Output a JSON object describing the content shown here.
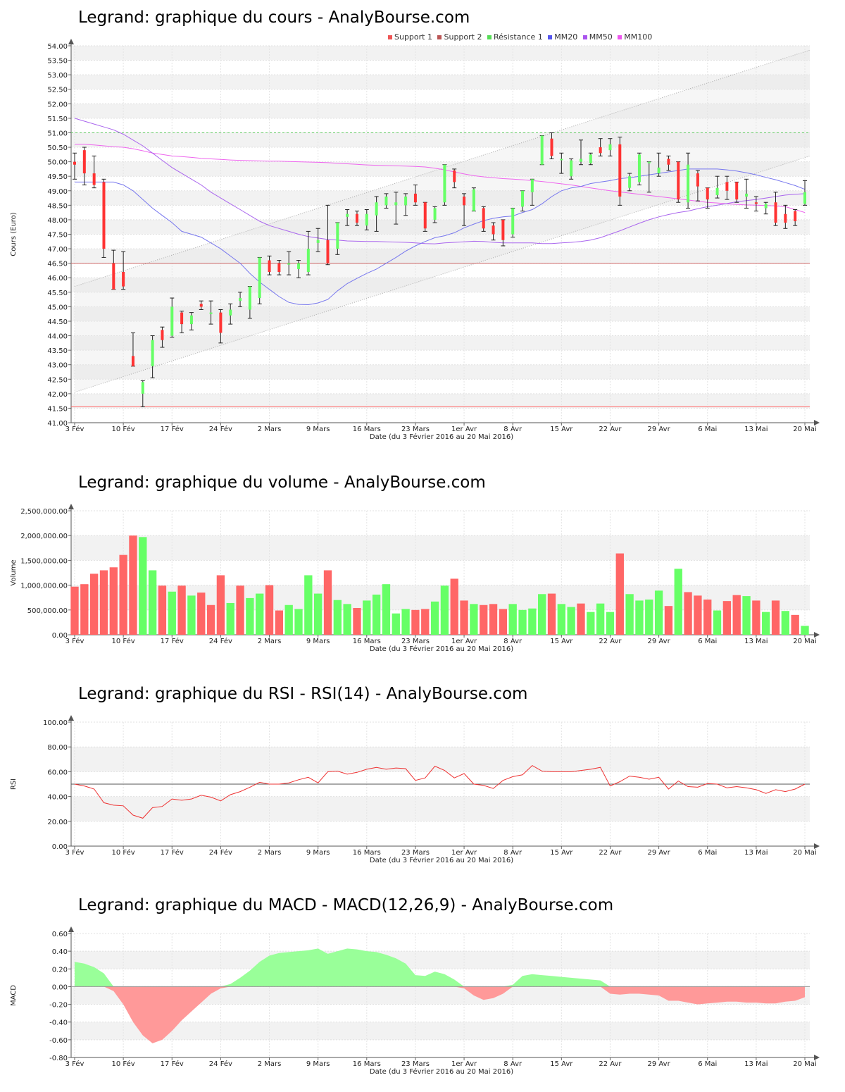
{
  "colors": {
    "up": "#66ff66",
    "down": "#ff3333",
    "volUp": "#66ff66",
    "volDown": "#ff6666",
    "support1": "#ff6666",
    "support2": "#cc6666",
    "resistance1": "#66cc66",
    "mm20": "#7777ee",
    "mm50": "#aa66ee",
    "mm100": "#ee66ee",
    "rsiLine": "#ee3333",
    "macdPos": "#99ff99",
    "macdNeg": "#ff9999"
  },
  "chart_data": [
    {
      "id": "price",
      "type": "candlestick",
      "title": "Legrand: graphique du cours - AnalyBourse.com",
      "ylabel": "Cours (Euro)",
      "xlabel": "Date (du 3 Février 2016 au 20 Mai 2016)",
      "ylim": [
        41,
        54
      ],
      "yticks": [
        "41.00",
        "41.50",
        "42.00",
        "42.50",
        "43.00",
        "43.50",
        "44.00",
        "44.50",
        "45.00",
        "45.50",
        "46.00",
        "46.50",
        "47.00",
        "47.50",
        "48.00",
        "48.50",
        "49.00",
        "49.50",
        "50.00",
        "50.50",
        "51.00",
        "51.50",
        "52.00",
        "52.50",
        "53.00",
        "53.50",
        "54.00"
      ],
      "xtick_labels": [
        "3 Fév",
        "10 Fév",
        "17 Fév",
        "24 Fév",
        "2 Mars",
        "9 Mars",
        "16 Mars",
        "23 Mars",
        "1er Avr",
        "8 Avr",
        "15 Avr",
        "22 Avr",
        "29 Avr",
        "6 Mai",
        "13 Mai",
        "20 Mai"
      ],
      "legend": [
        "Support 1",
        "Support 2",
        "Résistance 1",
        "MM20",
        "MM50",
        "MM100"
      ],
      "support1": 41.55,
      "support2": 46.5,
      "resistance1": 51.0,
      "ohlc": [
        [
          50.0,
          50.3,
          49.4,
          49.9
        ],
        [
          50.4,
          50.5,
          49.2,
          49.6
        ],
        [
          49.6,
          50.2,
          49.1,
          49.2
        ],
        [
          49.3,
          49.4,
          46.7,
          47.0
        ],
        [
          46.5,
          46.95,
          45.6,
          45.6
        ],
        [
          46.2,
          46.9,
          45.6,
          45.7
        ],
        [
          43.3,
          44.1,
          42.95,
          42.95
        ],
        [
          42.0,
          42.45,
          41.55,
          42.4
        ],
        [
          42.95,
          44.0,
          42.55,
          43.85
        ],
        [
          44.2,
          44.3,
          43.6,
          43.85
        ],
        [
          44.0,
          45.3,
          43.95,
          45.0
        ],
        [
          44.8,
          44.85,
          44.1,
          44.4
        ],
        [
          44.4,
          44.8,
          44.2,
          44.7
        ],
        [
          45.1,
          45.2,
          44.9,
          45.0
        ],
        [
          44.8,
          45.2,
          44.4,
          44.8
        ],
        [
          44.8,
          44.9,
          43.75,
          44.1
        ],
        [
          44.7,
          45.1,
          44.4,
          44.9
        ],
        [
          45.2,
          45.5,
          45.0,
          45.3
        ],
        [
          44.9,
          45.7,
          44.6,
          45.7
        ],
        [
          45.3,
          46.7,
          45.1,
          46.7
        ],
        [
          46.6,
          46.75,
          46.1,
          46.2
        ],
        [
          46.5,
          46.6,
          46.1,
          46.2
        ],
        [
          46.5,
          46.9,
          46.1,
          46.5
        ],
        [
          46.3,
          46.6,
          46.0,
          46.5
        ],
        [
          46.2,
          47.6,
          46.1,
          47.0
        ],
        [
          47.2,
          47.7,
          46.9,
          47.3
        ],
        [
          47.3,
          48.5,
          46.45,
          46.5
        ],
        [
          47.0,
          47.9,
          46.8,
          47.9
        ],
        [
          48.1,
          48.35,
          47.8,
          48.2
        ],
        [
          48.2,
          48.3,
          47.8,
          47.9
        ],
        [
          47.8,
          48.35,
          47.65,
          48.2
        ],
        [
          48.15,
          48.8,
          47.6,
          48.6
        ],
        [
          48.5,
          48.9,
          48.4,
          48.8
        ],
        [
          48.5,
          48.95,
          47.85,
          48.6
        ],
        [
          48.5,
          48.9,
          48.15,
          48.8
        ],
        [
          48.9,
          49.2,
          48.5,
          48.6
        ],
        [
          48.6,
          48.6,
          47.6,
          47.7
        ],
        [
          48.0,
          48.45,
          47.9,
          48.4
        ],
        [
          48.6,
          49.9,
          48.5,
          49.9
        ],
        [
          49.7,
          49.75,
          49.1,
          49.3
        ],
        [
          48.8,
          48.9,
          47.8,
          48.5
        ],
        [
          48.3,
          49.1,
          48.3,
          49.05
        ],
        [
          48.4,
          48.45,
          47.6,
          47.7
        ],
        [
          47.8,
          47.9,
          47.3,
          47.5
        ],
        [
          48.0,
          48.0,
          47.1,
          47.3
        ],
        [
          47.5,
          48.4,
          47.4,
          48.4
        ],
        [
          48.45,
          49.0,
          48.3,
          49.0
        ],
        [
          48.95,
          49.4,
          48.5,
          49.4
        ],
        [
          49.9,
          50.9,
          49.9,
          50.9
        ],
        [
          50.8,
          51.0,
          50.1,
          50.2
        ],
        [
          50.1,
          50.3,
          49.6,
          50.1
        ],
        [
          49.5,
          50.1,
          49.4,
          50.05
        ],
        [
          50.0,
          50.75,
          49.9,
          50.1
        ],
        [
          49.95,
          50.3,
          49.9,
          50.25
        ],
        [
          50.5,
          50.8,
          50.2,
          50.3
        ],
        [
          50.4,
          50.8,
          50.2,
          50.6
        ],
        [
          50.6,
          50.85,
          48.5,
          48.8
        ],
        [
          49.1,
          49.6,
          49.0,
          49.5
        ],
        [
          49.3,
          50.3,
          49.2,
          50.25
        ],
        [
          50.0,
          50.0,
          48.95,
          50.0
        ],
        [
          49.6,
          50.3,
          49.5,
          49.8
        ],
        [
          50.1,
          50.2,
          49.7,
          49.9
        ],
        [
          50.0,
          50.0,
          48.6,
          48.7
        ],
        [
          48.6,
          50.3,
          48.4,
          49.9
        ],
        [
          49.6,
          49.7,
          48.65,
          49.15
        ],
        [
          49.1,
          49.1,
          48.4,
          48.7
        ],
        [
          48.85,
          49.5,
          48.75,
          49.1
        ],
        [
          49.3,
          49.5,
          48.7,
          49.0
        ],
        [
          49.3,
          49.3,
          48.6,
          48.7
        ],
        [
          48.8,
          49.4,
          48.4,
          48.9
        ],
        [
          48.6,
          48.8,
          48.3,
          48.55
        ],
        [
          48.4,
          48.6,
          48.2,
          48.55
        ],
        [
          48.6,
          48.95,
          47.8,
          47.9
        ],
        [
          48.2,
          48.5,
          47.7,
          47.9
        ],
        [
          48.3,
          48.35,
          47.8,
          47.95
        ],
        [
          48.55,
          49.35,
          48.5,
          48.95
        ]
      ],
      "mm20": [
        49.3,
        49.3,
        49.3,
        49.3,
        49.3,
        49.2,
        49.0,
        48.7,
        48.4,
        48.15,
        47.9,
        47.6,
        47.5,
        47.4,
        47.2,
        47.0,
        46.75,
        46.5,
        46.15,
        45.85,
        45.6,
        45.35,
        45.15,
        45.08,
        45.07,
        45.13,
        45.25,
        45.55,
        45.8,
        45.98,
        46.15,
        46.3,
        46.5,
        46.7,
        46.92,
        47.1,
        47.25,
        47.38,
        47.45,
        47.55,
        47.72,
        47.85,
        47.97,
        48.05,
        48.1,
        48.13,
        48.25,
        48.35,
        48.55,
        48.8,
        49.0,
        49.1,
        49.15,
        49.25,
        49.3,
        49.35,
        49.42,
        49.45,
        49.5,
        49.55,
        49.6,
        49.65,
        49.7,
        49.75,
        49.75,
        49.75,
        49.75,
        49.72,
        49.68,
        49.62,
        49.55,
        49.46,
        49.38,
        49.28,
        49.18,
        49.05
      ],
      "mm50": [
        51.5,
        51.4,
        51.3,
        51.2,
        51.1,
        50.95,
        50.75,
        50.55,
        50.3,
        50.05,
        49.8,
        49.6,
        49.4,
        49.2,
        48.95,
        48.75,
        48.55,
        48.35,
        48.15,
        47.95,
        47.8,
        47.7,
        47.6,
        47.5,
        47.42,
        47.37,
        47.32,
        47.3,
        47.27,
        47.26,
        47.25,
        47.25,
        47.24,
        47.23,
        47.22,
        47.2,
        47.18,
        47.17,
        47.2,
        47.22,
        47.24,
        47.26,
        47.25,
        47.22,
        47.2,
        47.2,
        47.2,
        47.2,
        47.18,
        47.18,
        47.2,
        47.22,
        47.25,
        47.3,
        47.38,
        47.5,
        47.62,
        47.75,
        47.88,
        48.0,
        48.1,
        48.18,
        48.25,
        48.3,
        48.38,
        48.45,
        48.5,
        48.56,
        48.62,
        48.66,
        48.7,
        48.75,
        48.8,
        48.85,
        48.88,
        48.9
      ],
      "mm100": [
        50.6,
        50.6,
        50.58,
        50.55,
        50.52,
        50.5,
        50.45,
        50.38,
        50.3,
        50.25,
        50.2,
        50.18,
        50.15,
        50.12,
        50.1,
        50.08,
        50.06,
        50.05,
        50.04,
        50.03,
        50.02,
        50.02,
        50.01,
        50.0,
        49.99,
        49.98,
        49.97,
        49.95,
        49.93,
        49.91,
        49.89,
        49.88,
        49.87,
        49.86,
        49.85,
        49.84,
        49.82,
        49.78,
        49.72,
        49.65,
        49.58,
        49.52,
        49.48,
        49.45,
        49.42,
        49.4,
        49.38,
        49.35,
        49.32,
        49.28,
        49.24,
        49.2,
        49.15,
        49.1,
        49.05,
        49.0,
        48.96,
        48.92,
        48.88,
        48.84,
        48.8,
        48.76,
        48.72,
        48.68,
        48.64,
        48.6,
        48.58,
        48.55,
        48.53,
        48.51,
        48.5,
        48.49,
        48.48,
        48.45,
        48.35,
        48.25
      ]
    },
    {
      "id": "volume",
      "type": "bar",
      "title": "Legrand: graphique du volume - AnalyBourse.com",
      "ylabel": "Volume",
      "xlabel": "Date (du 3 Février 2016 au 20 Mai 2016)",
      "ylim": [
        0,
        2500000
      ],
      "yticks": [
        "0.00",
        "500,000.00",
        "1,000,000.00",
        "1,500,000.00",
        "2,000,000.00",
        "2,500,000.00"
      ],
      "xtick_labels": [
        "3 Fév",
        "10 Fév",
        "17 Fév",
        "24 Fév",
        "2 Mars",
        "9 Mars",
        "16 Mars",
        "23 Mars",
        "1er Avr",
        "8 Avr",
        "15 Avr",
        "22 Avr",
        "29 Avr",
        "6 Mai",
        "13 Mai",
        "20 Mai"
      ],
      "values": [
        970000,
        1020000,
        1230000,
        1300000,
        1360000,
        1610000,
        2000000,
        1970000,
        1300000,
        990000,
        870000,
        990000,
        790000,
        850000,
        600000,
        1200000,
        640000,
        990000,
        740000,
        830000,
        1000000,
        490000,
        600000,
        520000,
        1200000,
        830000,
        1300000,
        700000,
        620000,
        540000,
        690000,
        810000,
        1020000,
        430000,
        520000,
        500000,
        520000,
        670000,
        990000,
        1130000,
        690000,
        620000,
        600000,
        620000,
        520000,
        620000,
        500000,
        530000,
        820000,
        830000,
        620000,
        560000,
        630000,
        460000,
        630000,
        460000,
        1640000,
        820000,
        690000,
        710000,
        890000,
        580000,
        1330000,
        860000,
        790000,
        710000,
        490000,
        680000,
        800000,
        780000,
        690000,
        460000,
        690000,
        480000,
        400000,
        180000
      ],
      "up": [
        false,
        false,
        false,
        false,
        false,
        false,
        false,
        true,
        true,
        false,
        true,
        false,
        true,
        false,
        false,
        false,
        true,
        false,
        true,
        true,
        false,
        false,
        true,
        true,
        true,
        true,
        false,
        true,
        true,
        false,
        true,
        true,
        true,
        true,
        true,
        false,
        false,
        true,
        true,
        false,
        false,
        true,
        false,
        false,
        false,
        true,
        true,
        true,
        true,
        false,
        true,
        true,
        false,
        true,
        true,
        true,
        false,
        true,
        true,
        true,
        true,
        false,
        true,
        false,
        false,
        false,
        true,
        false,
        false,
        true,
        false,
        true,
        false,
        true,
        false,
        true
      ]
    },
    {
      "id": "rsi",
      "type": "line",
      "title": "Legrand: graphique du RSI - RSI(14) - AnalyBourse.com",
      "ylabel": "RSI",
      "xlabel": "Date (du 3 Février 2016 au 20 Mai 2016)",
      "ylim": [
        0,
        100
      ],
      "yticks": [
        "0.00",
        "20.00",
        "40.00",
        "60.00",
        "80.00",
        "100.00"
      ],
      "xtick_labels": [
        "3 Fév",
        "10 Fév",
        "17 Fév",
        "24 Fév",
        "2 Mars",
        "9 Mars",
        "16 Mars",
        "23 Mars",
        "1er Avr",
        "8 Avr",
        "15 Avr",
        "22 Avr",
        "29 Avr",
        "6 Mai",
        "13 Mai",
        "20 Mai"
      ],
      "reference": 50,
      "values": [
        50,
        48.5,
        46,
        35,
        33,
        32.5,
        25,
        22.5,
        31,
        32,
        38,
        37,
        38,
        41,
        39.5,
        36.5,
        41.5,
        44,
        47.5,
        51.5,
        50,
        50,
        51,
        53.5,
        55.5,
        51,
        60,
        60.5,
        58,
        59.5,
        62,
        63.5,
        62,
        63,
        62.5,
        53,
        55,
        64.5,
        61,
        55,
        58.5,
        50,
        49,
        46.5,
        53,
        56,
        57.5,
        65,
        60.5,
        60,
        60,
        60,
        61,
        62,
        63.5,
        48.5,
        52,
        56.5,
        55.5,
        54,
        55.5,
        46,
        52.5,
        48,
        47.5,
        50.5,
        50,
        47,
        48,
        47,
        45.5,
        42.5,
        45.5,
        44,
        46,
        50
      ]
    },
    {
      "id": "macd",
      "type": "area",
      "title": "Legrand: graphique du MACD - MACD(12,26,9) - AnalyBourse.com",
      "ylabel": "MACD",
      "xlabel": "Date (du 3 Février 2016 au 20 Mai 2016)",
      "ylim": [
        -0.8,
        0.6
      ],
      "yticks": [
        "-0.80",
        "-0.60",
        "-0.40",
        "-0.20",
        "0.00",
        "0.20",
        "0.40",
        "0.60"
      ],
      "xtick_labels": [
        "3 Fév",
        "10 Fév",
        "17 Fév",
        "24 Fév",
        "2 Mars",
        "9 Mars",
        "16 Mars",
        "23 Mars",
        "1er Avr",
        "8 Avr",
        "15 Avr",
        "22 Avr",
        "29 Avr",
        "6 Mai",
        "13 Mai",
        "20 Mai"
      ],
      "values": [
        0.28,
        0.26,
        0.22,
        0.15,
        -0.05,
        -0.2,
        -0.4,
        -0.55,
        -0.64,
        -0.6,
        -0.5,
        -0.38,
        -0.28,
        -0.18,
        -0.08,
        -0.02,
        0.03,
        0.1,
        0.18,
        0.28,
        0.35,
        0.38,
        0.39,
        0.4,
        0.41,
        0.43,
        0.37,
        0.4,
        0.43,
        0.42,
        0.4,
        0.39,
        0.36,
        0.32,
        0.26,
        0.13,
        0.12,
        0.17,
        0.14,
        0.08,
        -0.02,
        -0.1,
        -0.15,
        -0.13,
        -0.08,
        0.02,
        0.12,
        0.14,
        0.13,
        0.12,
        0.11,
        0.1,
        0.09,
        0.08,
        0.07,
        -0.08,
        -0.09,
        -0.08,
        -0.08,
        -0.09,
        -0.1,
        -0.16,
        -0.16,
        -0.18,
        -0.2,
        -0.19,
        -0.18,
        -0.17,
        -0.17,
        -0.18,
        -0.18,
        -0.19,
        -0.19,
        -0.17,
        -0.16,
        -0.12
      ]
    }
  ]
}
